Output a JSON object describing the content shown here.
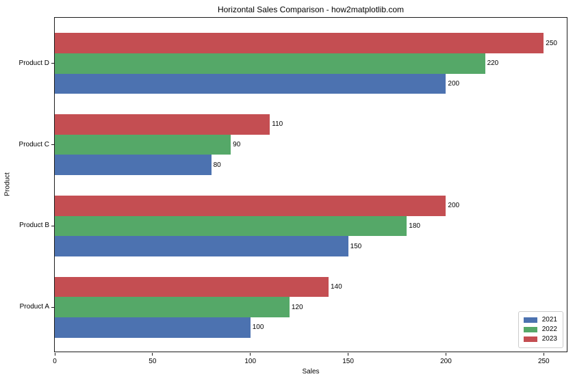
{
  "chart_data": {
    "type": "bar",
    "orientation": "horizontal",
    "title": "Horizontal Sales Comparison - how2matplotlib.com",
    "xlabel": "Sales",
    "ylabel": "Product",
    "categories": [
      "Product A",
      "Product B",
      "Product C",
      "Product D"
    ],
    "series": [
      {
        "name": "2021",
        "color": "#4C72B0",
        "values": [
          100,
          150,
          80,
          200
        ]
      },
      {
        "name": "2022",
        "color": "#55A868",
        "values": [
          120,
          180,
          90,
          220
        ]
      },
      {
        "name": "2023",
        "color": "#C44E52",
        "values": [
          140,
          200,
          110,
          250
        ]
      }
    ],
    "series_offsets": [
      -0.25,
      0,
      0.25
    ],
    "bar_height_units": 0.25,
    "xticks": [
      0,
      50,
      100,
      150,
      200,
      250
    ],
    "xlim": [
      0,
      262.5
    ],
    "ylim": [
      -0.5625,
      3.5625
    ],
    "grid": false,
    "legend_position": "lower right",
    "value_labels": true
  }
}
